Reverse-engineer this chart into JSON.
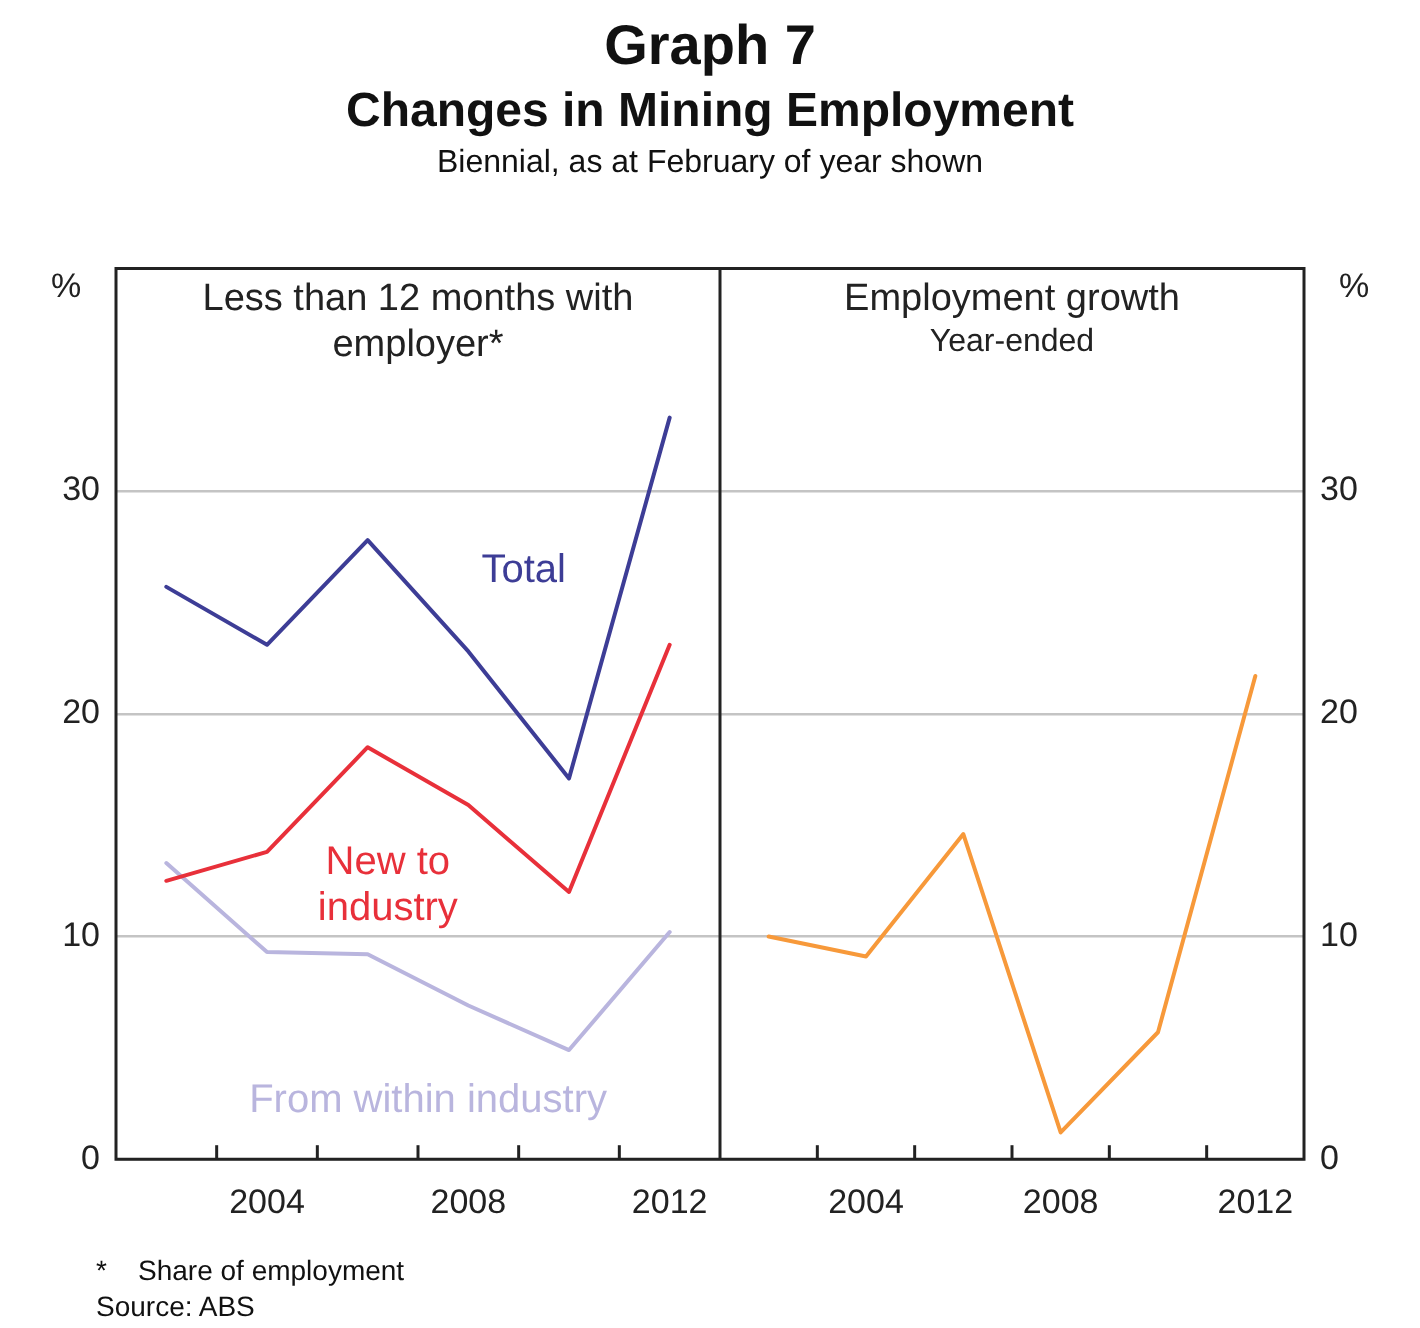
{
  "chart_data": [
    {
      "type": "line",
      "title": "Less than 12 months with employer*",
      "ylabel": "%",
      "categories": [
        null,
        "2004",
        null,
        "2008",
        null,
        "2012"
      ],
      "series": [
        {
          "name": "Total",
          "color": "#3d3d96",
          "values": [
            25.7,
            23.1,
            27.8,
            22.8,
            17.1,
            33.3
          ]
        },
        {
          "name": "New to industry",
          "color": "#e8303a",
          "values": [
            12.5,
            13.8,
            18.5,
            15.9,
            12.0,
            23.1
          ]
        },
        {
          "name": "From within industry",
          "color": "#b9b5de",
          "values": [
            13.3,
            9.3,
            9.2,
            6.9,
            4.9,
            10.2
          ]
        }
      ],
      "ylim": [
        0,
        40
      ],
      "yticks": [
        0,
        10,
        20,
        30
      ],
      "grid": "y",
      "legend": false,
      "marker": "none",
      "line_style": "solid",
      "annotations": [
        "Graph 7",
        "Changes in Mining Employment",
        "Biennial, as at February of year shown",
        "*    Share of employment",
        "Source: ABS"
      ]
    },
    {
      "type": "line",
      "title": "Employment growth",
      "subtitle": "Year-ended",
      "ylabel": "%",
      "categories": [
        null,
        "2004",
        null,
        "2008",
        null,
        "2012"
      ],
      "series": [
        {
          "color": "#f7993a",
          "values": [
            10.0,
            9.1,
            14.6,
            1.2,
            5.7,
            21.7
          ]
        }
      ],
      "ylim": [
        0,
        40
      ],
      "yticks": [
        0,
        10,
        20,
        30
      ],
      "grid": "y",
      "legend": false,
      "marker": "none",
      "line_style": "solid"
    }
  ]
}
